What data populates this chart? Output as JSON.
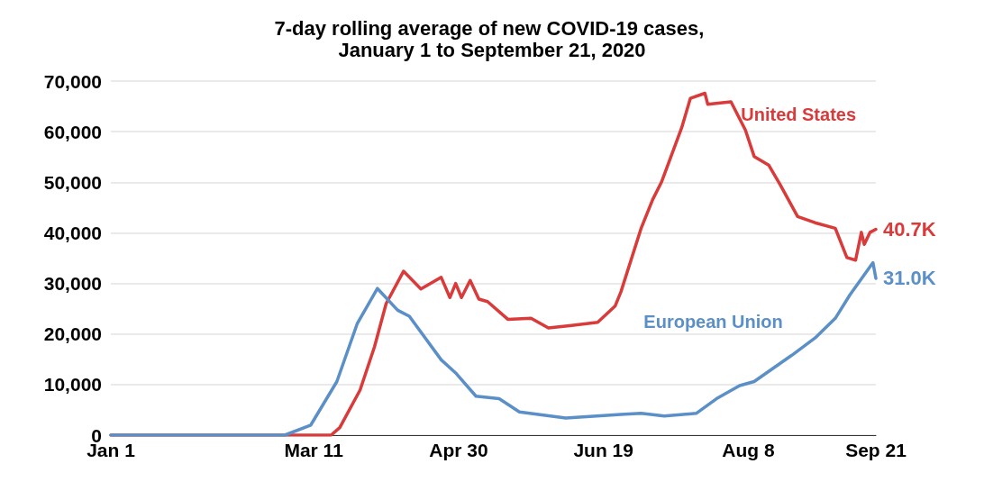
{
  "chart_data": {
    "type": "line",
    "title": "7-day rolling average of new COVID-19 cases, January 1 to September 21, 2020",
    "xlim": [
      "2020-01-01",
      "2020-09-21"
    ],
    "xticks": [
      {
        "value": "2020-01-01",
        "label": "Jan 1"
      },
      {
        "value": "2020-03-11",
        "label": "Mar 11"
      },
      {
        "value": "2020-04-30",
        "label": "Apr 30"
      },
      {
        "value": "2020-06-19",
        "label": "Jun 19"
      },
      {
        "value": "2020-08-08",
        "label": "Aug 8"
      },
      {
        "value": "2020-09-21",
        "label": "Sep 21"
      }
    ],
    "ylim": [
      0,
      70000
    ],
    "yticks": [
      {
        "value": 0,
        "label": "0"
      },
      {
        "value": 10000,
        "label": "10,000"
      },
      {
        "value": 20000,
        "label": "20,000"
      },
      {
        "value": 30000,
        "label": "30,000"
      },
      {
        "value": 40000,
        "label": "40,000"
      },
      {
        "value": 50000,
        "label": "50,000"
      },
      {
        "value": 60000,
        "label": "60,000"
      },
      {
        "value": 70000,
        "label": "70,000"
      }
    ],
    "grid": "y",
    "legend": false,
    "marker": "none",
    "line_style": "solid",
    "series": [
      {
        "name": "United States",
        "color": "#d93a3a",
        "x": [
          "2020-01-01",
          "2020-03-17",
          "2020-03-20",
          "2020-03-27",
          "2020-04-01",
          "2020-04-05",
          "2020-04-11",
          "2020-04-17",
          "2020-04-24",
          "2020-04-27",
          "2020-04-29",
          "2020-05-01",
          "2020-05-04",
          "2020-05-07",
          "2020-05-10",
          "2020-05-17",
          "2020-05-25",
          "2020-05-31",
          "2020-06-08",
          "2020-06-17",
          "2020-06-23",
          "2020-06-25",
          "2020-07-02",
          "2020-07-06",
          "2020-07-09",
          "2020-07-12",
          "2020-07-16",
          "2020-07-19",
          "2020-07-24",
          "2020-07-25",
          "2020-08-02",
          "2020-08-07",
          "2020-08-10",
          "2020-08-15",
          "2020-08-19",
          "2020-08-25",
          "2020-08-31",
          "2020-09-07",
          "2020-09-11",
          "2020-09-14",
          "2020-09-16",
          "2020-09-17",
          "2020-09-19",
          "2020-09-21"
        ],
        "values": [
          0,
          0,
          1500,
          8900,
          17500,
          26000,
          32400,
          28900,
          31200,
          27200,
          30000,
          27200,
          30600,
          26900,
          26400,
          22900,
          23100,
          21200,
          21700,
          22300,
          25500,
          28300,
          40900,
          46600,
          50000,
          54600,
          60800,
          66600,
          67600,
          65400,
          65900,
          60300,
          55100,
          53400,
          49500,
          43200,
          42000,
          40900,
          35100,
          34600,
          40100,
          37700,
          40100,
          40700
        ],
        "value_labels": [
          null,
          null,
          null,
          null,
          null,
          null,
          null,
          null,
          null,
          null,
          null,
          null,
          null,
          null,
          null,
          null,
          null,
          null,
          null,
          null,
          null,
          null,
          null,
          null,
          null,
          null,
          null,
          null,
          null,
          null,
          null,
          null,
          null,
          null,
          null,
          null,
          null,
          null,
          null,
          null,
          null,
          null,
          null,
          "40.7K"
        ]
      },
      {
        "name": "European Union",
        "color": "#5b8fc7",
        "x": [
          "2020-01-01",
          "2020-03-01",
          "2020-03-10",
          "2020-03-19",
          "2020-03-26",
          "2020-04-02",
          "2020-04-09",
          "2020-04-13",
          "2020-04-24",
          "2020-04-29",
          "2020-05-06",
          "2020-05-14",
          "2020-05-21",
          "2020-06-06",
          "2020-06-25",
          "2020-07-02",
          "2020-07-10",
          "2020-07-21",
          "2020-07-28",
          "2020-08-05",
          "2020-08-10",
          "2020-08-23",
          "2020-08-31",
          "2020-09-07",
          "2020-09-12",
          "2020-09-20",
          "2020-09-21"
        ],
        "values": [
          0,
          0,
          2000,
          10600,
          22000,
          29000,
          24700,
          23500,
          14900,
          12300,
          7700,
          7200,
          4600,
          3400,
          4100,
          4300,
          3800,
          4300,
          7200,
          9800,
          10600,
          15800,
          19200,
          23100,
          27700,
          34100,
          31000
        ],
        "value_labels": [
          null,
          null,
          null,
          null,
          null,
          null,
          null,
          null,
          null,
          null,
          null,
          null,
          null,
          null,
          null,
          null,
          null,
          null,
          null,
          null,
          null,
          null,
          null,
          null,
          null,
          null,
          "31.0K"
        ]
      }
    ]
  }
}
